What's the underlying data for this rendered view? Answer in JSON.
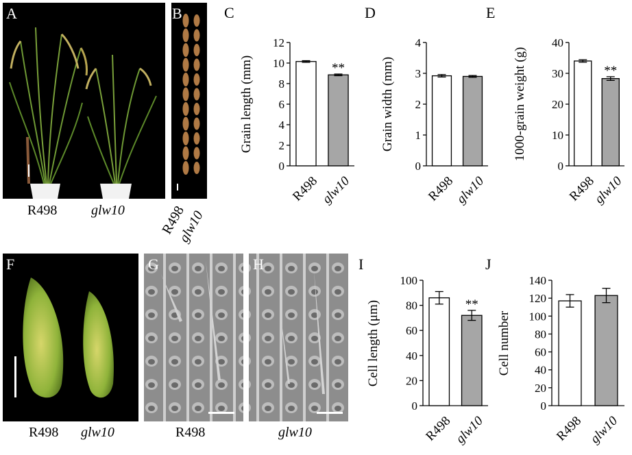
{
  "panels": {
    "A": {
      "letter": "A",
      "captions": [
        "R498",
        "glw10"
      ],
      "colors": {
        "background": "#000000",
        "plant": "#7aa13a",
        "pot": "#f2f2f2"
      }
    },
    "B": {
      "letter": "B",
      "captions": [
        "R498",
        "glw10"
      ],
      "colors": {
        "background": "#000000",
        "grain": "#b07a45"
      }
    },
    "F": {
      "letter": "F",
      "captions": [
        "R498",
        "glw10"
      ],
      "colors": {
        "background": "#000000",
        "grain": "#a6c24a"
      }
    },
    "G": {
      "letter": "G",
      "caption": "R498",
      "colors": {
        "sem": "#8a8a8a"
      }
    },
    "H": {
      "letter": "H",
      "caption": "glw10",
      "colors": {
        "sem": "#8a8a8a"
      }
    }
  },
  "chart_data": [
    {
      "panel": "C",
      "type": "bar",
      "categories": [
        "R498",
        "glw10"
      ],
      "values": [
        10.15,
        8.85
      ],
      "errors": [
        0.08,
        0.08
      ],
      "ylabel": "Grain length (mm)",
      "ylim": [
        0,
        12
      ],
      "yticks": [
        0,
        2,
        4,
        6,
        8,
        10,
        12
      ],
      "significance": [
        "",
        "**"
      ],
      "bar_colors": [
        "#ffffff",
        "#a6a6a6"
      ]
    },
    {
      "panel": "D",
      "type": "bar",
      "categories": [
        "R498",
        "glw10"
      ],
      "values": [
        2.92,
        2.9
      ],
      "errors": [
        0.04,
        0.03
      ],
      "ylabel": "Grain width (mm)",
      "ylim": [
        0,
        4
      ],
      "yticks": [
        0,
        1,
        2,
        3,
        4
      ],
      "significance": [
        "",
        ""
      ],
      "bar_colors": [
        "#ffffff",
        "#a6a6a6"
      ]
    },
    {
      "panel": "E",
      "type": "bar",
      "categories": [
        "R498",
        "glw10"
      ],
      "values": [
        34.0,
        28.3
      ],
      "errors": [
        0.4,
        0.6
      ],
      "ylabel": "1000-grain weight (g)",
      "ylim": [
        0,
        40
      ],
      "yticks": [
        0,
        10,
        20,
        30,
        40
      ],
      "significance": [
        "",
        "**"
      ],
      "bar_colors": [
        "#ffffff",
        "#a6a6a6"
      ]
    },
    {
      "panel": "I",
      "type": "bar",
      "categories": [
        "R498",
        "glw10"
      ],
      "values": [
        86,
        72
      ],
      "errors": [
        5,
        4
      ],
      "ylabel": "Cell length (μm)",
      "ylim": [
        0,
        100
      ],
      "yticks": [
        0,
        20,
        40,
        60,
        80,
        100
      ],
      "significance": [
        "",
        "**"
      ],
      "bar_colors": [
        "#ffffff",
        "#a6a6a6"
      ]
    },
    {
      "panel": "J",
      "type": "bar",
      "categories": [
        "R498",
        "glw10"
      ],
      "values": [
        117,
        123
      ],
      "errors": [
        7,
        8
      ],
      "ylabel": "Cell number",
      "ylim": [
        0,
        140
      ],
      "yticks": [
        0,
        20,
        40,
        60,
        80,
        100,
        120,
        140
      ],
      "significance": [
        "",
        ""
      ],
      "bar_colors": [
        "#ffffff",
        "#a6a6a6"
      ]
    }
  ]
}
